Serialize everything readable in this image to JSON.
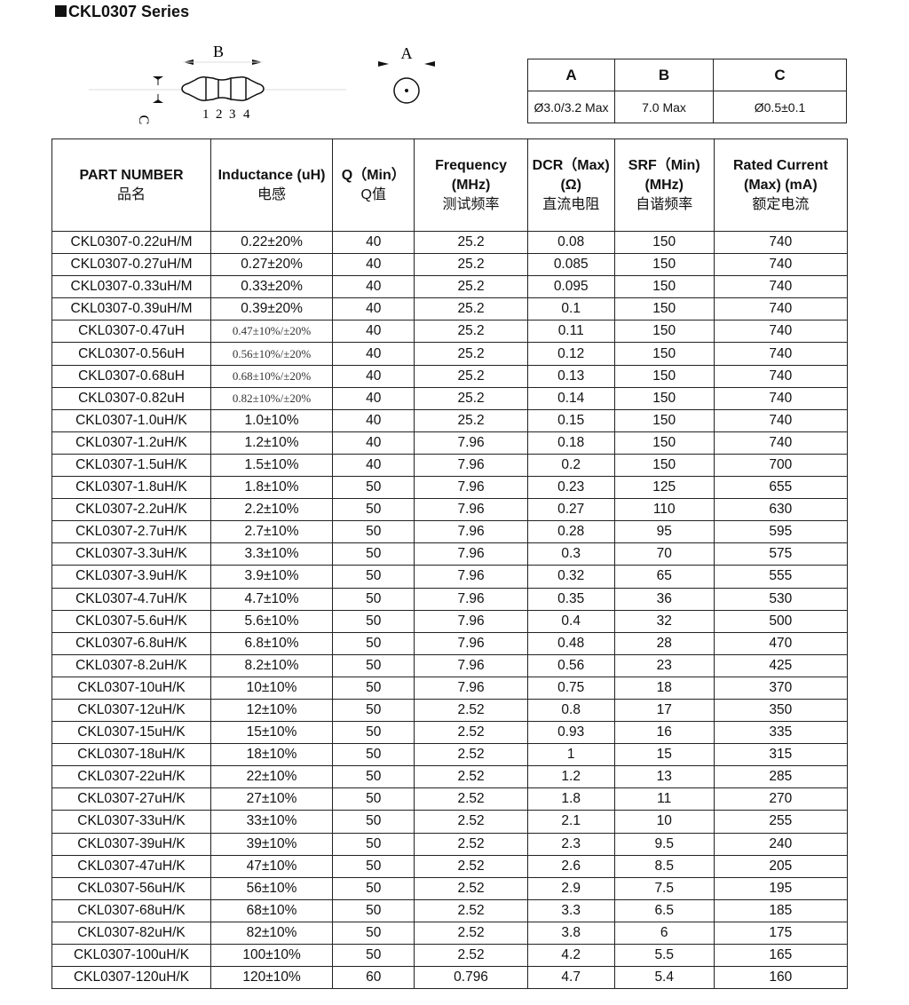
{
  "title": "CKL0307 Series",
  "drawing": {
    "label_b": "B",
    "label_a": "A",
    "label_c": "C",
    "band_numbers": [
      "1",
      "2",
      "3",
      "4"
    ]
  },
  "dimensions": {
    "headers": [
      "A",
      "B",
      "C"
    ],
    "values": [
      "Ø3.0/3.2 Max",
      "7.0 Max",
      "Ø0.5±0.1"
    ]
  },
  "table": {
    "headers": [
      {
        "en": "PART NUMBER",
        "cn": "品名"
      },
      {
        "en": "Inductance (uH)",
        "cn": "电感"
      },
      {
        "en": "Q（Min）",
        "cn": "Q值"
      },
      {
        "en": "Frequency (MHz)",
        "cn": "测试频率"
      },
      {
        "en": "DCR（Max) (Ω)",
        "cn": "直流电阻"
      },
      {
        "en": "SRF（Min) (MHz)",
        "cn": "自谐频率"
      },
      {
        "en": "Rated Current (Max) (mA)",
        "cn": "额定电流"
      }
    ],
    "rows": [
      [
        "CKL0307-0.22uH/M",
        "0.22±20%",
        "40",
        "25.2",
        "0.08",
        "150",
        "740"
      ],
      [
        "CKL0307-0.27uH/M",
        "0.27±20%",
        "40",
        "25.2",
        "0.085",
        "150",
        "740"
      ],
      [
        "CKL0307-0.33uH/M",
        "0.33±20%",
        "40",
        "25.2",
        "0.095",
        "150",
        "740"
      ],
      [
        "CKL0307-0.39uH/M",
        "0.39±20%",
        "40",
        "25.2",
        "0.1",
        "150",
        "740"
      ],
      [
        "CKL0307-0.47uH",
        "0.47±10%/±20%",
        "40",
        "25.2",
        "0.11",
        "150",
        "740"
      ],
      [
        "CKL0307-0.56uH",
        "0.56±10%/±20%",
        "40",
        "25.2",
        "0.12",
        "150",
        "740"
      ],
      [
        "CKL0307-0.68uH",
        "0.68±10%/±20%",
        "40",
        "25.2",
        "0.13",
        "150",
        "740"
      ],
      [
        "CKL0307-0.82uH",
        "0.82±10%/±20%",
        "40",
        "25.2",
        "0.14",
        "150",
        "740"
      ],
      [
        "CKL0307-1.0uH/K",
        "1.0±10%",
        "40",
        "25.2",
        "0.15",
        "150",
        "740"
      ],
      [
        "CKL0307-1.2uH/K",
        "1.2±10%",
        "40",
        "7.96",
        "0.18",
        "150",
        "740"
      ],
      [
        "CKL0307-1.5uH/K",
        "1.5±10%",
        "40",
        "7.96",
        "0.2",
        "150",
        "700"
      ],
      [
        "CKL0307-1.8uH/K",
        "1.8±10%",
        "50",
        "7.96",
        "0.23",
        "125",
        "655"
      ],
      [
        "CKL0307-2.2uH/K",
        "2.2±10%",
        "50",
        "7.96",
        "0.27",
        "110",
        "630"
      ],
      [
        "CKL0307-2.7uH/K",
        "2.7±10%",
        "50",
        "7.96",
        "0.28",
        "95",
        "595"
      ],
      [
        "CKL0307-3.3uH/K",
        "3.3±10%",
        "50",
        "7.96",
        "0.3",
        "70",
        "575"
      ],
      [
        "CKL0307-3.9uH/K",
        "3.9±10%",
        "50",
        "7.96",
        "0.32",
        "65",
        "555"
      ],
      [
        "CKL0307-4.7uH/K",
        "4.7±10%",
        "50",
        "7.96",
        "0.35",
        "36",
        "530"
      ],
      [
        "CKL0307-5.6uH/K",
        "5.6±10%",
        "50",
        "7.96",
        "0.4",
        "32",
        "500"
      ],
      [
        "CKL0307-6.8uH/K",
        "6.8±10%",
        "50",
        "7.96",
        "0.48",
        "28",
        "470"
      ],
      [
        "CKL0307-8.2uH/K",
        "8.2±10%",
        "50",
        "7.96",
        "0.56",
        "23",
        "425"
      ],
      [
        "CKL0307-10uH/K",
        "10±10%",
        "50",
        "7.96",
        "0.75",
        "18",
        "370"
      ],
      [
        "CKL0307-12uH/K",
        "12±10%",
        "50",
        "2.52",
        "0.8",
        "17",
        "350"
      ],
      [
        "CKL0307-15uH/K",
        "15±10%",
        "50",
        "2.52",
        "0.93",
        "16",
        "335"
      ],
      [
        "CKL0307-18uH/K",
        "18±10%",
        "50",
        "2.52",
        "1",
        "15",
        "315"
      ],
      [
        "CKL0307-22uH/K",
        "22±10%",
        "50",
        "2.52",
        "1.2",
        "13",
        "285"
      ],
      [
        "CKL0307-27uH/K",
        "27±10%",
        "50",
        "2.52",
        "1.8",
        "11",
        "270"
      ],
      [
        "CKL0307-33uH/K",
        "33±10%",
        "50",
        "2.52",
        "2.1",
        "10",
        "255"
      ],
      [
        "CKL0307-39uH/K",
        "39±10%",
        "50",
        "2.52",
        "2.3",
        "9.5",
        "240"
      ],
      [
        "CKL0307-47uH/K",
        "47±10%",
        "50",
        "2.52",
        "2.6",
        "8.5",
        "205"
      ],
      [
        "CKL0307-56uH/K",
        "56±10%",
        "50",
        "2.52",
        "2.9",
        "7.5",
        "195"
      ],
      [
        "CKL0307-68uH/K",
        "68±10%",
        "50",
        "2.52",
        "3.3",
        "6.5",
        "185"
      ],
      [
        "CKL0307-82uH/K",
        "82±10%",
        "50",
        "2.52",
        "3.8",
        "6",
        "175"
      ],
      [
        "CKL0307-100uH/K",
        "100±10%",
        "50",
        "2.52",
        "4.2",
        "5.5",
        "165"
      ],
      [
        "CKL0307-120uH/K",
        "120±10%",
        "60",
        "0.796",
        "4.7",
        "5.4",
        "160"
      ]
    ]
  }
}
